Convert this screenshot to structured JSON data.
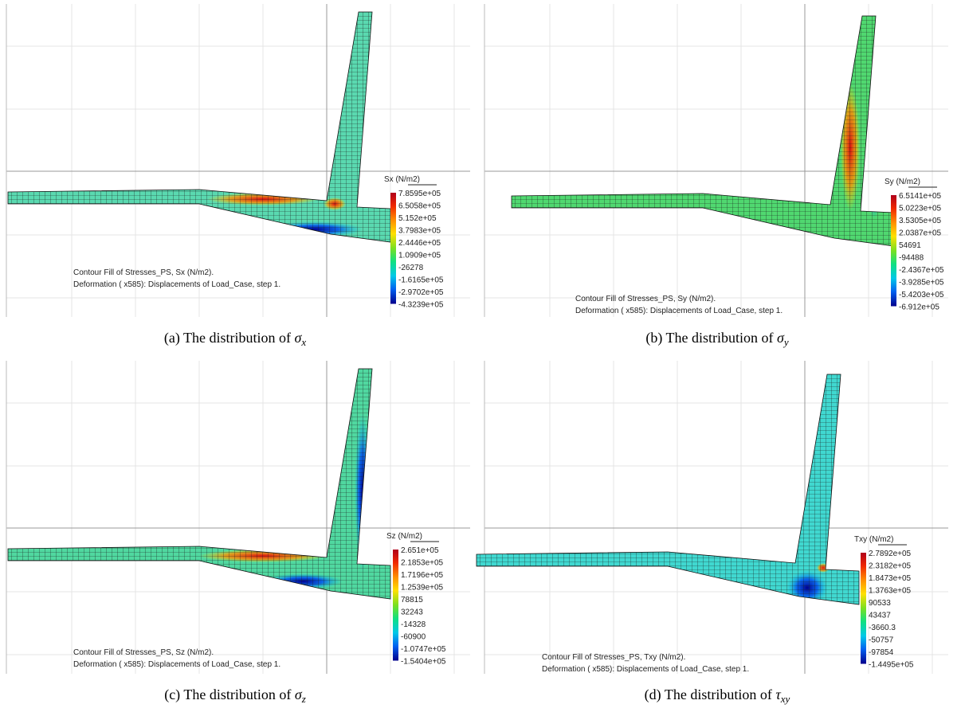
{
  "panels": [
    {
      "legend_title": "Sx (N/m2)",
      "legend_values": [
        "7.8595e+05",
        "6.5058e+05",
        "5.152e+05",
        "3.7983e+05",
        "2.4446e+05",
        "1.0909e+05",
        "-26278",
        "-1.6165e+05",
        "-2.9702e+05",
        "-4.3239e+05"
      ],
      "contour_text": "Contour Fill of Stresses_PS, Sx (N/m2).",
      "deformation_text": "Deformation ( x585): Displacements of Load_Case, step 1.",
      "caption_prefix": "(a) The distribution of ",
      "caption_symbol": "σ",
      "caption_subscript": "x"
    },
    {
      "legend_title": "Sy (N/m2)",
      "legend_values": [
        "6.5141e+05",
        "5.0223e+05",
        "3.5305e+05",
        "2.0387e+05",
        "54691",
        "-94488",
        "-2.4367e+05",
        "-3.9285e+05",
        "-5.4203e+05",
        "-6.912e+05"
      ],
      "contour_text": "Contour Fill of Stresses_PS, Sy (N/m2).",
      "deformation_text": "Deformation ( x585): Displacements of Load_Case, step 1.",
      "caption_prefix": "(b) The distribution of ",
      "caption_symbol": "σ",
      "caption_subscript": "y"
    },
    {
      "legend_title": "Sz (N/m2)",
      "legend_values": [
        "2.651e+05",
        "2.1853e+05",
        "1.7196e+05",
        "1.2539e+05",
        "78815",
        "32243",
        "-14328",
        "-60900",
        "-1.0747e+05",
        "-1.5404e+05"
      ],
      "contour_text": "Contour Fill of Stresses_PS, Sz (N/m2).",
      "deformation_text": "Deformation ( x585): Displacements of Load_Case, step 1.",
      "caption_prefix": "(c) The distribution of ",
      "caption_symbol": "σ",
      "caption_subscript": "z"
    },
    {
      "legend_title": "Txy (N/m2)",
      "legend_values": [
        "2.7892e+05",
        "2.3182e+05",
        "1.8473e+05",
        "1.3763e+05",
        "90533",
        "43437",
        "-3660.3",
        "-50757",
        "-97854",
        "-1.4495e+05"
      ],
      "contour_text": "Contour Fill of Stresses_PS, Txy (N/m2).",
      "deformation_text": "Deformation ( x585): Displacements of Load_Case, step 1.",
      "caption_prefix": "(d) The distribution of ",
      "caption_symbol": "τ",
      "caption_subscript": "xy"
    }
  ]
}
